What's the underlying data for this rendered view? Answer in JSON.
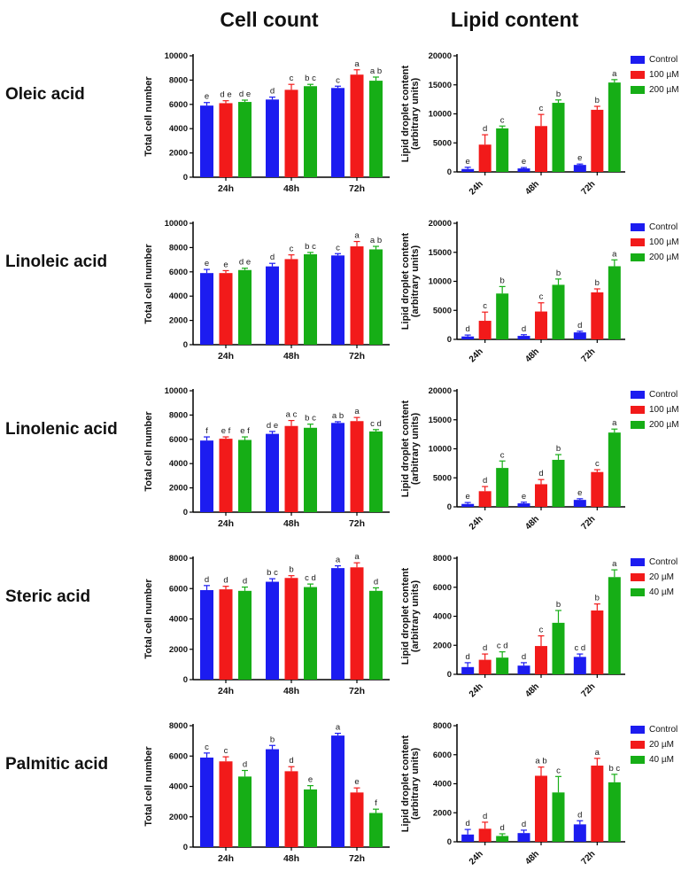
{
  "figure": {
    "col_titles": {
      "left": "Cell count",
      "right": "Lipid content"
    }
  },
  "colors": {
    "series": [
      "#1c1cf0",
      "#f21a1a",
      "#16ae16"
    ],
    "axis": "#000000",
    "letter": "#1a1a1a"
  },
  "rows": [
    {
      "label": "Oleic acid",
      "legend": [
        "Control",
        "100 µM",
        "200 µM"
      ]
    },
    {
      "label": "Linoleic acid",
      "legend": [
        "Control",
        "100 µM",
        "200 µM"
      ]
    },
    {
      "label": "Linolenic acid",
      "legend": [
        "Control",
        "100 µM",
        "200 µM"
      ]
    },
    {
      "label": "Steric acid",
      "legend": [
        "Control",
        "20 µM",
        "40 µM"
      ]
    },
    {
      "label": "Palmitic acid",
      "legend": [
        "Control",
        "20 µM",
        "40 µM"
      ]
    }
  ],
  "chart_data": [
    {
      "type": "bar",
      "row": "Oleic acid",
      "panel": "cell_count",
      "ylabel": "Total cell number",
      "ylabel_lines": [
        "Total cell number"
      ],
      "ylim": [
        0,
        10000
      ],
      "ytick": 2000,
      "categories": [
        "24h",
        "48h",
        "72h"
      ],
      "xtick_rotation": 0,
      "series": [
        {
          "name": "Control",
          "values": [
            5900,
            6400,
            7350
          ],
          "errors": [
            250,
            200,
            150
          ],
          "letters": [
            "e",
            "d",
            "c"
          ]
        },
        {
          "name": "100 µM",
          "values": [
            6100,
            7200,
            8450
          ],
          "errors": [
            200,
            450,
            400
          ],
          "letters": [
            "d e",
            "c",
            "a"
          ]
        },
        {
          "name": "200 µM",
          "values": [
            6200,
            7500,
            7950
          ],
          "errors": [
            150,
            150,
            300
          ],
          "letters": [
            "d e",
            "b c",
            "a b"
          ]
        }
      ]
    },
    {
      "type": "bar",
      "row": "Oleic acid",
      "panel": "lipid_content",
      "ylabel": "Lipid droplet content (arbitrary units)",
      "ylabel_lines": [
        "Lipid droplet content",
        "(arbitrary units)"
      ],
      "ylim": [
        0,
        20000
      ],
      "ytick": 5000,
      "categories": [
        "24h",
        "48h",
        "72h"
      ],
      "xtick_rotation": -45,
      "series": [
        {
          "name": "Control",
          "values": [
            500,
            600,
            1200
          ],
          "errors": [
            300,
            150,
            150
          ],
          "letters": [
            "e",
            "e",
            "e"
          ]
        },
        {
          "name": "100 µM",
          "values": [
            4700,
            7900,
            10700
          ],
          "errors": [
            1700,
            2000,
            600
          ],
          "letters": [
            "d",
            "c",
            "b"
          ]
        },
        {
          "name": "200 µM",
          "values": [
            7500,
            11900,
            15400
          ],
          "errors": [
            400,
            500,
            500
          ],
          "letters": [
            "c",
            "b",
            "a"
          ]
        }
      ]
    },
    {
      "type": "bar",
      "row": "Linoleic acid",
      "panel": "cell_count",
      "ylabel": "Total cell number",
      "ylabel_lines": [
        "Total cell number"
      ],
      "ylim": [
        0,
        10000
      ],
      "ytick": 2000,
      "categories": [
        "24h",
        "48h",
        "72h"
      ],
      "xtick_rotation": 0,
      "series": [
        {
          "name": "Control",
          "values": [
            5900,
            6450,
            7350
          ],
          "errors": [
            300,
            250,
            150
          ],
          "letters": [
            "e",
            "d",
            "c"
          ]
        },
        {
          "name": "100 µM",
          "values": [
            5900,
            7050,
            8100
          ],
          "errors": [
            200,
            350,
            400
          ],
          "letters": [
            "e",
            "c",
            "a"
          ]
        },
        {
          "name": "200 µM",
          "values": [
            6150,
            7450,
            7850
          ],
          "errors": [
            150,
            150,
            250
          ],
          "letters": [
            "d e",
            "b c",
            "a b"
          ]
        }
      ]
    },
    {
      "type": "bar",
      "row": "Linoleic acid",
      "panel": "lipid_content",
      "ylabel": "Lipid droplet content (arbitrary units)",
      "ylabel_lines": [
        "Lipid droplet content",
        "(arbitrary units)"
      ],
      "ylim": [
        0,
        20000
      ],
      "ytick": 5000,
      "categories": [
        "24h",
        "48h",
        "72h"
      ],
      "xtick_rotation": -45,
      "series": [
        {
          "name": "Control",
          "values": [
            500,
            600,
            1200
          ],
          "errors": [
            250,
            200,
            200
          ],
          "letters": [
            "d",
            "d",
            "d"
          ]
        },
        {
          "name": "100 µM",
          "values": [
            3200,
            4800,
            8100
          ],
          "errors": [
            1500,
            1500,
            600
          ],
          "letters": [
            "c",
            "c",
            "b"
          ]
        },
        {
          "name": "200 µM",
          "values": [
            7900,
            9400,
            12600
          ],
          "errors": [
            1200,
            1000,
            1100
          ],
          "letters": [
            "b",
            "b",
            "a"
          ]
        }
      ]
    },
    {
      "type": "bar",
      "row": "Linolenic acid",
      "panel": "cell_count",
      "ylabel": "Total cell number",
      "ylabel_lines": [
        "Total cell number"
      ],
      "ylim": [
        0,
        10000
      ],
      "ytick": 2000,
      "categories": [
        "24h",
        "48h",
        "72h"
      ],
      "xtick_rotation": 0,
      "series": [
        {
          "name": "Control",
          "values": [
            5900,
            6450,
            7350
          ],
          "errors": [
            300,
            200,
            100
          ],
          "letters": [
            "f",
            "d e",
            "a b"
          ]
        },
        {
          "name": "100 µM",
          "values": [
            6050,
            7100,
            7500
          ],
          "errors": [
            150,
            450,
            300
          ],
          "letters": [
            "e f",
            "a c",
            "a"
          ]
        },
        {
          "name": "200 µM",
          "values": [
            5950,
            6950,
            6650
          ],
          "errors": [
            250,
            300,
            150
          ],
          "letters": [
            "e f",
            "b c",
            "c d"
          ]
        }
      ]
    },
    {
      "type": "bar",
      "row": "Linolenic acid",
      "panel": "lipid_content",
      "ylabel": "Lipid droplet content (arbitrary units)",
      "ylabel_lines": [
        "Lipid droplet content",
        "(arbitrary units)"
      ],
      "ylim": [
        0,
        20000
      ],
      "ytick": 5000,
      "categories": [
        "24h",
        "48h",
        "72h"
      ],
      "xtick_rotation": -45,
      "series": [
        {
          "name": "Control",
          "values": [
            500,
            600,
            1200
          ],
          "errors": [
            250,
            200,
            200
          ],
          "letters": [
            "e",
            "e",
            "e"
          ]
        },
        {
          "name": "100 µM",
          "values": [
            2700,
            3900,
            6000
          ],
          "errors": [
            800,
            800,
            400
          ],
          "letters": [
            "d",
            "d",
            "c"
          ]
        },
        {
          "name": "200 µM",
          "values": [
            6700,
            8100,
            12800
          ],
          "errors": [
            1200,
            900,
            600
          ],
          "letters": [
            "c",
            "b",
            "a"
          ]
        }
      ]
    },
    {
      "type": "bar",
      "row": "Steric acid",
      "panel": "cell_count",
      "ylabel": "Total cell number",
      "ylabel_lines": [
        "Total cell number"
      ],
      "ylim": [
        0,
        8000
      ],
      "ytick": 2000,
      "categories": [
        "24h",
        "48h",
        "72h"
      ],
      "xtick_rotation": 0,
      "series": [
        {
          "name": "Control",
          "values": [
            5900,
            6450,
            7350
          ],
          "errors": [
            300,
            200,
            150
          ],
          "letters": [
            "d",
            "b c",
            "a"
          ]
        },
        {
          "name": "20 µM",
          "values": [
            5950,
            6700,
            7400
          ],
          "errors": [
            200,
            150,
            300
          ],
          "letters": [
            "d",
            "b",
            "a"
          ]
        },
        {
          "name": "40 µM",
          "values": [
            5850,
            6100,
            5850
          ],
          "errors": [
            250,
            200,
            200
          ],
          "letters": [
            "d",
            "c d",
            "d"
          ]
        }
      ]
    },
    {
      "type": "bar",
      "row": "Steric acid",
      "panel": "lipid_content",
      "ylabel": "Lipid droplet content (arbitrary units)",
      "ylabel_lines": [
        "Lipid droplet content",
        "(arbitrary units)"
      ],
      "ylim": [
        0,
        8000
      ],
      "ytick": 2000,
      "categories": [
        "24h",
        "48h",
        "72h"
      ],
      "xtick_rotation": -45,
      "series": [
        {
          "name": "Control",
          "values": [
            500,
            600,
            1200
          ],
          "errors": [
            300,
            200,
            200
          ],
          "letters": [
            "d",
            "d",
            "c d"
          ]
        },
        {
          "name": "20 µM",
          "values": [
            1000,
            1950,
            4400
          ],
          "errors": [
            400,
            700,
            450
          ],
          "letters": [
            "d",
            "c",
            "b"
          ]
        },
        {
          "name": "40 µM",
          "values": [
            1150,
            3550,
            6700
          ],
          "errors": [
            400,
            850,
            500
          ],
          "letters": [
            "c d",
            "b",
            "a"
          ]
        }
      ]
    },
    {
      "type": "bar",
      "row": "Palmitic acid",
      "panel": "cell_count",
      "ylabel": "Total cell number",
      "ylabel_lines": [
        "Total cell number"
      ],
      "ylim": [
        0,
        8000
      ],
      "ytick": 2000,
      "categories": [
        "24h",
        "48h",
        "72h"
      ],
      "xtick_rotation": 0,
      "series": [
        {
          "name": "Control",
          "values": [
            5900,
            6450,
            7350
          ],
          "errors": [
            300,
            250,
            150
          ],
          "letters": [
            "c",
            "b",
            "a"
          ]
        },
        {
          "name": "20 µM",
          "values": [
            5650,
            5000,
            3600
          ],
          "errors": [
            300,
            300,
            300
          ],
          "letters": [
            "c",
            "d",
            "e"
          ]
        },
        {
          "name": "40 µM",
          "values": [
            4650,
            3800,
            2250
          ],
          "errors": [
            400,
            250,
            250
          ],
          "letters": [
            "d",
            "e",
            "f"
          ]
        }
      ]
    },
    {
      "type": "bar",
      "row": "Palmitic acid",
      "panel": "lipid_content",
      "ylabel": "Lipid droplet content (arbitrary units)",
      "ylabel_lines": [
        "Lipid droplet content",
        "(arbitrary units)"
      ],
      "ylim": [
        0,
        8000
      ],
      "ytick": 2000,
      "categories": [
        "24h",
        "48h",
        "72h"
      ],
      "xtick_rotation": -45,
      "series": [
        {
          "name": "Control",
          "values": [
            500,
            600,
            1200
          ],
          "errors": [
            350,
            200,
            250
          ],
          "letters": [
            "d",
            "d",
            "d"
          ]
        },
        {
          "name": "20 µM",
          "values": [
            900,
            4550,
            5250
          ],
          "errors": [
            450,
            600,
            500
          ],
          "letters": [
            "d",
            "a b",
            "a"
          ]
        },
        {
          "name": "40 µM",
          "values": [
            400,
            3400,
            4100
          ],
          "errors": [
            150,
            1100,
            550
          ],
          "letters": [
            "d",
            "c",
            "b c"
          ]
        }
      ]
    }
  ]
}
